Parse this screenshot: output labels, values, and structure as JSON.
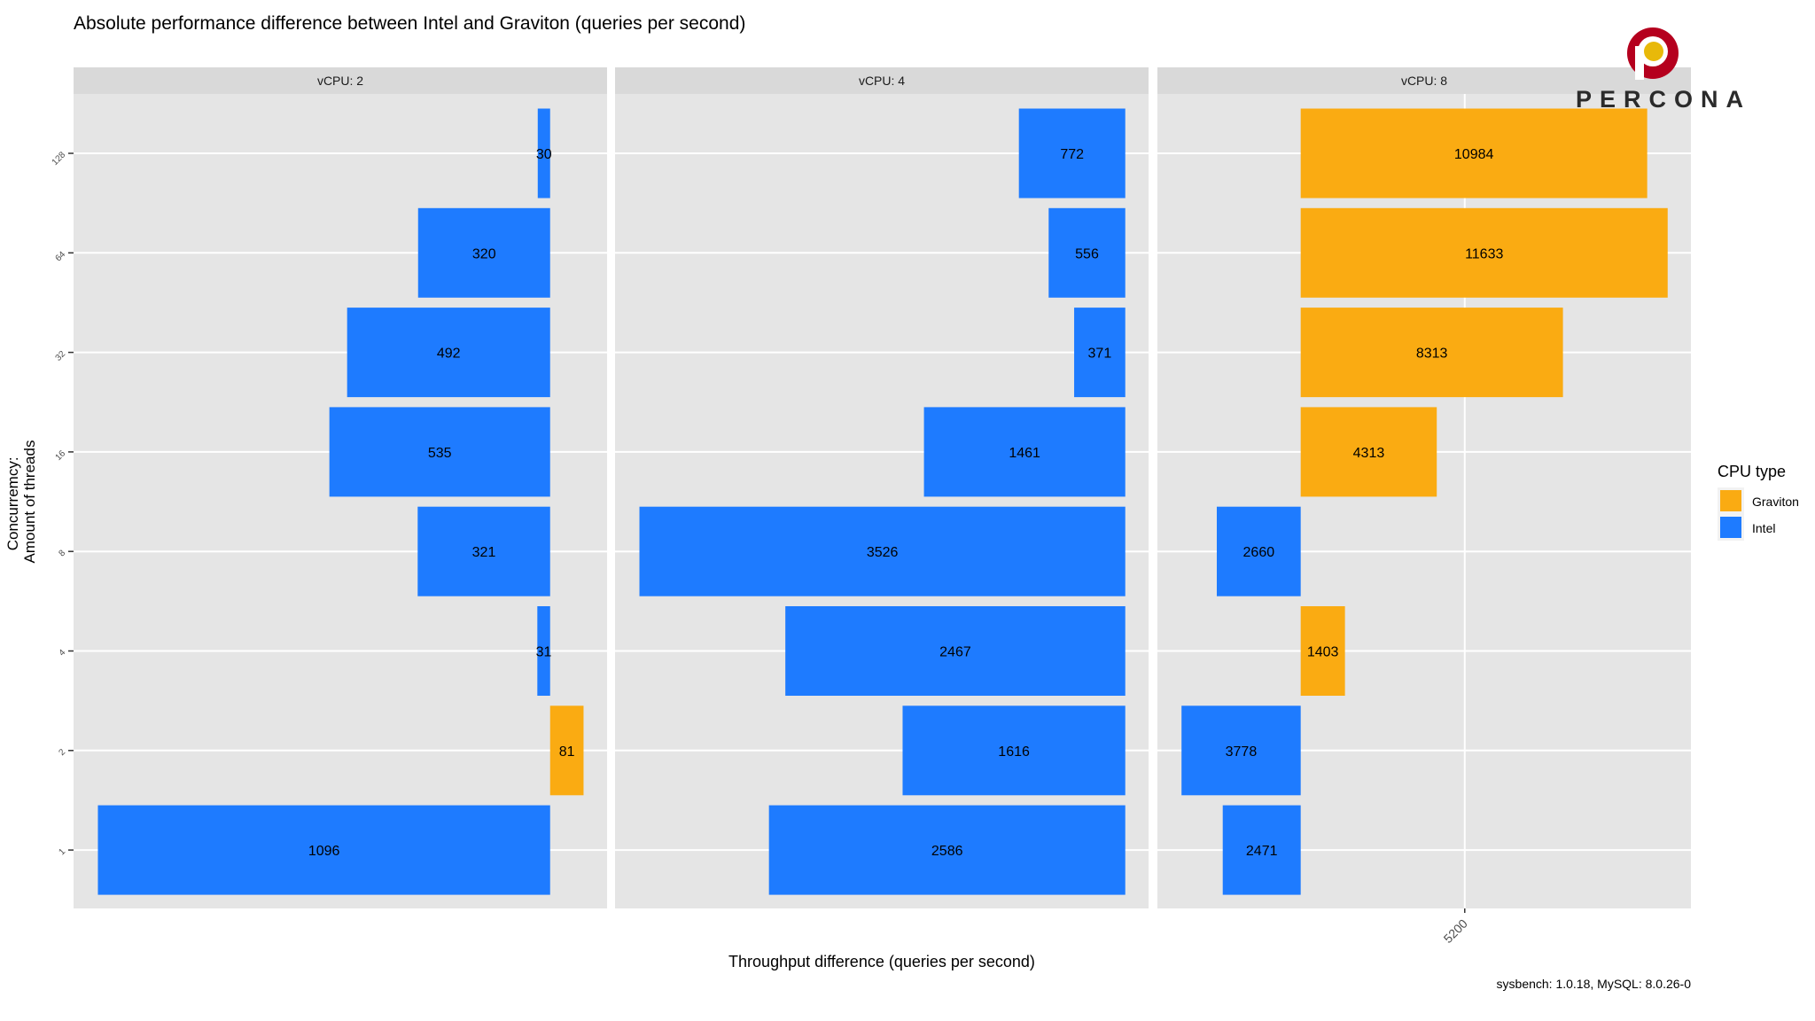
{
  "chart_data": {
    "type": "bar",
    "orientation": "horizontal",
    "title": "Absolute performance difference between Intel and Graviton (queries per second)",
    "xlabel": "Throughput difference (queries per second)",
    "ylabel_lines": [
      "Concurremcy:",
      "Amount of threads"
    ],
    "caption": "sysbench: 1.0.18, MySQL: 8.0.26-0",
    "categories": [
      "128",
      "64",
      "32",
      "16",
      "8",
      "4",
      "2",
      "1"
    ],
    "legend": {
      "title": "CPU type",
      "position": "right",
      "entries": [
        {
          "name": "Graviton",
          "color": "#FAAB12"
        },
        {
          "name": "Intel",
          "color": "#1E7BFF"
        }
      ]
    },
    "grid": true,
    "facets": [
      {
        "label": "vCPU: 2",
        "xlim": [
          -1155,
          138
        ],
        "x_ticks": [],
        "bars": [
          {
            "threads": "128",
            "cpu": "Intel",
            "value": 30
          },
          {
            "threads": "64",
            "cpu": "Intel",
            "value": 320
          },
          {
            "threads": "32",
            "cpu": "Intel",
            "value": 492
          },
          {
            "threads": "16",
            "cpu": "Intel",
            "value": 535
          },
          {
            "threads": "8",
            "cpu": "Intel",
            "value": 321
          },
          {
            "threads": "4",
            "cpu": "Intel",
            "value": 31
          },
          {
            "threads": "2",
            "cpu": "Graviton",
            "value": 81
          },
          {
            "threads": "1",
            "cpu": "Intel",
            "value": 1096
          }
        ]
      },
      {
        "label": "vCPU: 4",
        "xlim": [
          -3703,
          169
        ],
        "x_ticks": [],
        "bars": [
          {
            "threads": "128",
            "cpu": "Intel",
            "value": 772
          },
          {
            "threads": "64",
            "cpu": "Intel",
            "value": 556
          },
          {
            "threads": "32",
            "cpu": "Intel",
            "value": 371
          },
          {
            "threads": "16",
            "cpu": "Intel",
            "value": 1461
          },
          {
            "threads": "8",
            "cpu": "Intel",
            "value": 3526
          },
          {
            "threads": "4",
            "cpu": "Intel",
            "value": 2467
          },
          {
            "threads": "2",
            "cpu": "Intel",
            "value": 1616
          },
          {
            "threads": "1",
            "cpu": "Intel",
            "value": 2586
          }
        ]
      },
      {
        "label": "vCPU: 8",
        "xlim": [
          -4542,
          12370
        ],
        "x_ticks": [
          "5200"
        ],
        "bars": [
          {
            "threads": "128",
            "cpu": "Graviton",
            "value": 10984
          },
          {
            "threads": "64",
            "cpu": "Graviton",
            "value": 11633
          },
          {
            "threads": "32",
            "cpu": "Graviton",
            "value": 8313
          },
          {
            "threads": "16",
            "cpu": "Graviton",
            "value": 4313
          },
          {
            "threads": "8",
            "cpu": "Intel",
            "value": 2660
          },
          {
            "threads": "4",
            "cpu": "Graviton",
            "value": 1403
          },
          {
            "threads": "2",
            "cpu": "Intel",
            "value": 3778
          },
          {
            "threads": "1",
            "cpu": "Intel",
            "value": 2471
          }
        ]
      }
    ]
  },
  "logo": {
    "text": "PERCONA",
    "colors": {
      "ring": "#B5001E",
      "dot": "#E8B90A"
    }
  }
}
